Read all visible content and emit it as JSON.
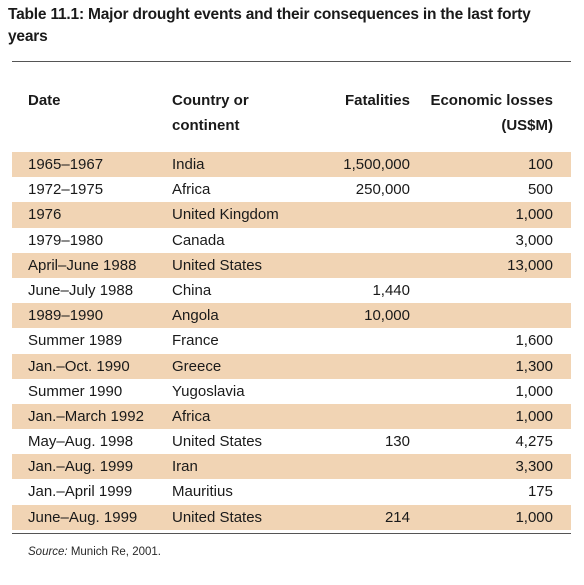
{
  "title": "Table 11.1: Major drought events and their consequences in the last forty years",
  "columns": {
    "date": "Date",
    "country": "Country or continent",
    "fatalities": "Fatalities",
    "economic": "Economic losses (US$M)"
  },
  "colors": {
    "row_shade": "#f1d4b4",
    "rule": "#555555"
  },
  "rows": [
    {
      "date": "1965–1967",
      "country": "India",
      "fatalities": "1,500,000",
      "economic": "100",
      "shaded": true
    },
    {
      "date": "1972–1975",
      "country": "Africa",
      "fatalities": "250,000",
      "economic": "500",
      "shaded": false
    },
    {
      "date": "1976",
      "country": "United Kingdom",
      "fatalities": "",
      "economic": "1,000",
      "shaded": true
    },
    {
      "date": "1979–1980",
      "country": "Canada",
      "fatalities": "",
      "economic": "3,000",
      "shaded": false
    },
    {
      "date": "April–June 1988",
      "country": "United States",
      "fatalities": "",
      "economic": "13,000",
      "shaded": true
    },
    {
      "date": "June–July 1988",
      "country": "China",
      "fatalities": "1,440",
      "economic": "",
      "shaded": false
    },
    {
      "date": "1989–1990",
      "country": "Angola",
      "fatalities": "10,000",
      "economic": "",
      "shaded": true
    },
    {
      "date": "Summer 1989",
      "country": "France",
      "fatalities": "",
      "economic": "1,600",
      "shaded": false
    },
    {
      "date": "Jan.–Oct. 1990",
      "country": "Greece",
      "fatalities": "",
      "economic": "1,300",
      "shaded": true
    },
    {
      "date": "Summer 1990",
      "country": "Yugoslavia",
      "fatalities": "",
      "economic": "1,000",
      "shaded": false
    },
    {
      "date": "Jan.–March 1992",
      "country": "Africa",
      "fatalities": "",
      "economic": "1,000",
      "shaded": true
    },
    {
      "date": "May–Aug. 1998",
      "country": "United States",
      "fatalities": "130",
      "economic": "4,275",
      "shaded": false
    },
    {
      "date": "Jan.–Aug. 1999",
      "country": "Iran",
      "fatalities": "",
      "economic": "3,300",
      "shaded": true
    },
    {
      "date": "Jan.–April 1999",
      "country": "Mauritius",
      "fatalities": "",
      "economic": "175",
      "shaded": false
    },
    {
      "date": "June–Aug. 1999",
      "country": "United States",
      "fatalities": "214",
      "economic": "1,000",
      "shaded": true
    }
  ],
  "source": {
    "label": "Source:",
    "text": " Munich Re, 2001."
  }
}
